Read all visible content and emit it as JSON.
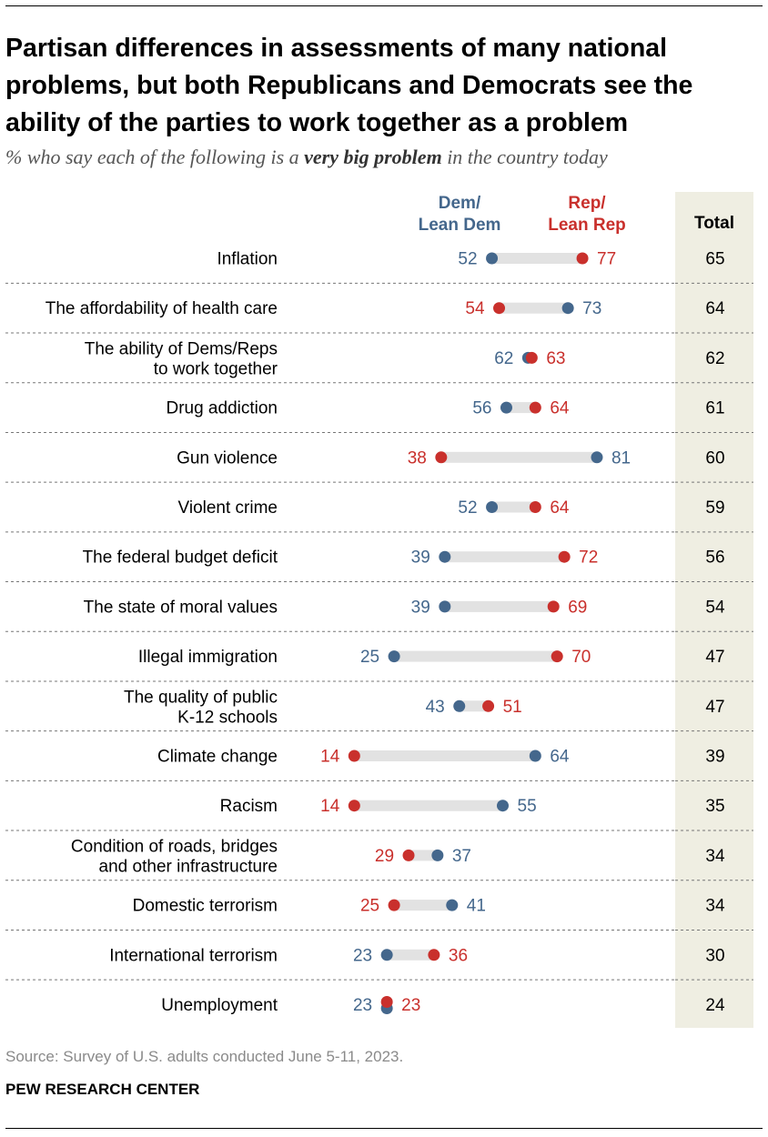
{
  "header": {
    "title": "Partisan differences in assessments of many national problems, but both Republicans and Democrats see the ability of the parties to work together as a problem",
    "subtitle_prefix": "% who say each of the following is a ",
    "subtitle_emphasis": "very big problem",
    "subtitle_suffix": " in the country today"
  },
  "legend": {
    "dem_line1": "Dem/",
    "dem_line2": "Lean Dem",
    "rep_line1": "Rep/",
    "rep_line2": "Lean Rep",
    "total": "Total"
  },
  "chart_data": {
    "type": "dot-plot",
    "colors": {
      "dem": "#44678c",
      "rep": "#c9302c",
      "bar": "#e2e2e2",
      "total_column": "#efeee2"
    },
    "categories": [
      [
        "Inflation"
      ],
      [
        "The affordability of health care"
      ],
      [
        "The ability of Dems/Reps",
        "to work together"
      ],
      [
        "Drug addiction"
      ],
      [
        "Gun violence"
      ],
      [
        "Violent crime"
      ],
      [
        "The federal budget deficit"
      ],
      [
        "The state of moral values"
      ],
      [
        "Illegal immigration"
      ],
      [
        "The quality of public",
        "K-12 schools"
      ],
      [
        "Climate change"
      ],
      [
        "Racism"
      ],
      [
        "Condition of roads, bridges",
        "and other infrastructure"
      ],
      [
        "Domestic terrorism"
      ],
      [
        "International terrorism"
      ],
      [
        "Unemployment"
      ]
    ],
    "series": [
      {
        "name": "Dem/Lean Dem",
        "values": [
          52,
          73,
          62,
          56,
          81,
          52,
          39,
          39,
          25,
          43,
          64,
          55,
          37,
          41,
          23,
          23
        ]
      },
      {
        "name": "Rep/Lean Rep",
        "values": [
          77,
          54,
          63,
          64,
          38,
          64,
          72,
          69,
          70,
          51,
          14,
          14,
          29,
          25,
          36,
          23
        ]
      },
      {
        "name": "Total",
        "values": [
          65,
          64,
          62,
          61,
          60,
          59,
          56,
          54,
          47,
          47,
          39,
          35,
          34,
          34,
          30,
          24
        ]
      }
    ]
  },
  "footer": {
    "source": "Source: Survey of U.S. adults conducted June 5-11, 2023.",
    "org": "PEW RESEARCH CENTER"
  }
}
